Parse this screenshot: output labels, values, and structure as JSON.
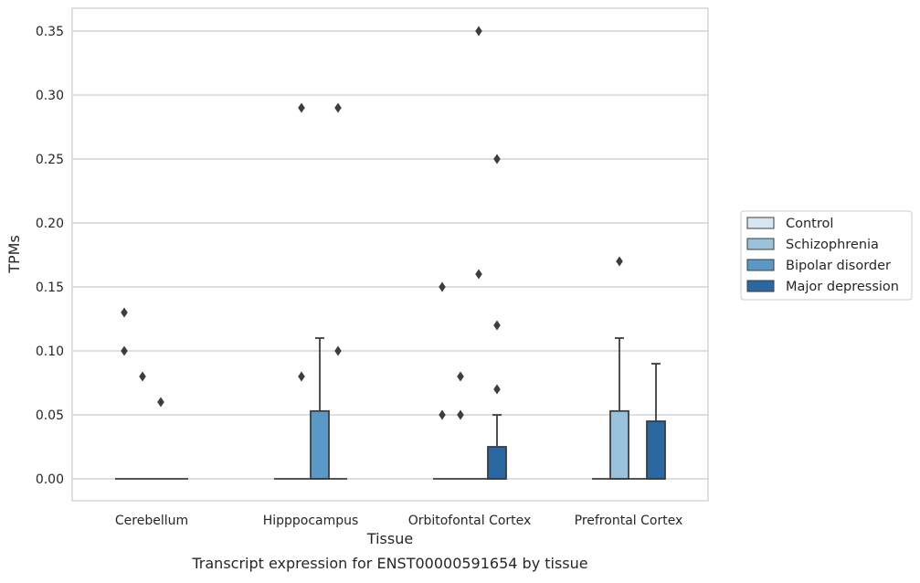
{
  "chart_data": {
    "type": "box",
    "caption": "Transcript expression for ENST00000591654 by tissue",
    "xlabel": "Tissue",
    "ylabel": "TPMs",
    "ylim": [
      -0.017,
      0.367
    ],
    "yticks": [
      0.0,
      0.05,
      0.1,
      0.15,
      0.2,
      0.25,
      0.3,
      0.35
    ],
    "ytick_labels": [
      "0.00",
      "0.05",
      "0.10",
      "0.15",
      "0.20",
      "0.25",
      "0.30",
      "0.35"
    ],
    "grid": true,
    "legend_position": "right",
    "categories": [
      "Cerebellum",
      "Hipppocampus",
      "Orbitofontal Cortex",
      "Prefrontal Cortex"
    ],
    "series": [
      {
        "name": "Control",
        "color": "#d8e6f2",
        "boxes": [
          {
            "q1": 0,
            "median": 0,
            "q3": 0,
            "whisker_low": 0,
            "whisker_high": 0,
            "outliers": [
              0.13,
              0.1
            ]
          },
          {
            "q1": 0,
            "median": 0,
            "q3": 0,
            "whisker_low": 0,
            "whisker_high": 0,
            "outliers": []
          },
          {
            "q1": 0,
            "median": 0,
            "q3": 0,
            "whisker_low": 0,
            "whisker_high": 0,
            "outliers": [
              0.15,
              0.05
            ]
          },
          {
            "q1": 0,
            "median": 0,
            "q3": 0,
            "whisker_low": 0,
            "whisker_high": 0,
            "outliers": []
          }
        ]
      },
      {
        "name": "Schizophrenia",
        "color": "#9ac2dc",
        "boxes": [
          {
            "q1": 0,
            "median": 0,
            "q3": 0,
            "whisker_low": 0,
            "whisker_high": 0,
            "outliers": [
              0.08
            ]
          },
          {
            "q1": 0,
            "median": 0,
            "q3": 0,
            "whisker_low": 0,
            "whisker_high": 0,
            "outliers": [
              0.08,
              0.29
            ]
          },
          {
            "q1": 0,
            "median": 0,
            "q3": 0,
            "whisker_low": 0,
            "whisker_high": 0,
            "outliers": [
              0.08,
              0.05
            ]
          },
          {
            "q1": 0,
            "median": 0,
            "q3": 0.053,
            "whisker_low": 0,
            "whisker_high": 0.11,
            "outliers": [
              0.17
            ]
          }
        ]
      },
      {
        "name": "Bipolar disorder",
        "color": "#5a98c6",
        "boxes": [
          {
            "q1": 0,
            "median": 0,
            "q3": 0,
            "whisker_low": 0,
            "whisker_high": 0,
            "outliers": [
              0.06
            ]
          },
          {
            "q1": 0,
            "median": 0,
            "q3": 0.053,
            "whisker_low": 0,
            "whisker_high": 0.11,
            "outliers": []
          },
          {
            "q1": 0,
            "median": 0,
            "q3": 0,
            "whisker_low": 0,
            "whisker_high": 0,
            "outliers": [
              0.35,
              0.16
            ]
          },
          {
            "q1": 0,
            "median": 0,
            "q3": 0,
            "whisker_low": 0,
            "whisker_high": 0,
            "outliers": []
          }
        ]
      },
      {
        "name": "Major depression",
        "color": "#2a68a2",
        "boxes": [
          {
            "q1": 0,
            "median": 0,
            "q3": 0,
            "whisker_low": 0,
            "whisker_high": 0,
            "outliers": []
          },
          {
            "q1": 0,
            "median": 0,
            "q3": 0,
            "whisker_low": 0,
            "whisker_high": 0,
            "outliers": [
              0.29,
              0.1
            ]
          },
          {
            "q1": 0,
            "median": 0,
            "q3": 0.025,
            "whisker_low": 0,
            "whisker_high": 0.05,
            "outliers": [
              0.25,
              0.12,
              0.07
            ]
          },
          {
            "q1": 0,
            "median": 0,
            "q3": 0.045,
            "whisker_low": 0,
            "whisker_high": 0.09,
            "outliers": []
          }
        ]
      }
    ]
  }
}
